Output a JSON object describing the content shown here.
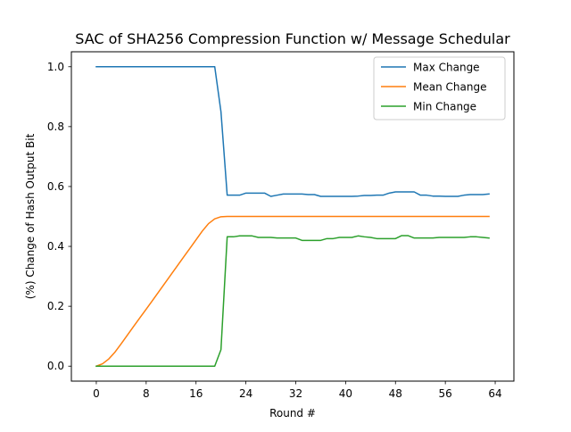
{
  "chart_data": {
    "type": "line",
    "title": "SAC of SHA256 Compression Function w/ Message Schedular",
    "xlabel": "Round #",
    "ylabel": "(%) Change of Hash Output Bit",
    "xlim": [
      -4,
      67
    ],
    "ylim": [
      -0.05,
      1.05
    ],
    "xticks": [
      0,
      8,
      16,
      24,
      32,
      40,
      48,
      56,
      64
    ],
    "xtick_labels": [
      "0",
      "8",
      "16",
      "24",
      "32",
      "40",
      "48",
      "56",
      "64"
    ],
    "yticks": [
      0.0,
      0.2,
      0.4,
      0.6,
      0.8,
      1.0
    ],
    "ytick_labels": [
      "0.0",
      "0.2",
      "0.4",
      "0.6",
      "0.8",
      "1.0"
    ],
    "grid": false,
    "legend_position": "top-right",
    "x": [
      0,
      1,
      2,
      3,
      4,
      5,
      6,
      7,
      8,
      9,
      10,
      11,
      12,
      13,
      14,
      15,
      16,
      17,
      18,
      19,
      20,
      21,
      22,
      23,
      24,
      25,
      26,
      27,
      28,
      29,
      30,
      31,
      32,
      33,
      34,
      35,
      36,
      37,
      38,
      39,
      40,
      41,
      42,
      43,
      44,
      45,
      46,
      47,
      48,
      49,
      50,
      51,
      52,
      53,
      54,
      55,
      56,
      57,
      58,
      59,
      60,
      61,
      62,
      63
    ],
    "series": [
      {
        "name": "Max Change",
        "color": "#1f77b4",
        "values": [
          1,
          1,
          1,
          1,
          1,
          1,
          1,
          1,
          1,
          1,
          1,
          1,
          1,
          1,
          1,
          1,
          1,
          1,
          1,
          1,
          0.85,
          0.571,
          0.571,
          0.571,
          0.578,
          0.578,
          0.578,
          0.578,
          0.567,
          0.571,
          0.575,
          0.575,
          0.575,
          0.575,
          0.573,
          0.573,
          0.567,
          0.567,
          0.567,
          0.567,
          0.567,
          0.567,
          0.568,
          0.57,
          0.57,
          0.571,
          0.571,
          0.578,
          0.582,
          0.582,
          0.582,
          0.582,
          0.571,
          0.571,
          0.568,
          0.568,
          0.567,
          0.567,
          0.567,
          0.571,
          0.573,
          0.573,
          0.573,
          0.575
        ]
      },
      {
        "name": "Mean Change",
        "color": "#ff7f0e",
        "values": [
          0,
          0.008,
          0.024,
          0.047,
          0.075,
          0.104,
          0.133,
          0.162,
          0.19,
          0.219,
          0.248,
          0.277,
          0.306,
          0.335,
          0.364,
          0.393,
          0.422,
          0.451,
          0.476,
          0.492,
          0.499,
          0.5,
          0.5,
          0.5,
          0.5,
          0.5,
          0.5,
          0.5,
          0.5,
          0.5,
          0.5,
          0.5,
          0.5,
          0.5,
          0.5,
          0.5,
          0.5,
          0.5,
          0.5,
          0.5,
          0.5,
          0.5,
          0.5,
          0.5,
          0.5,
          0.5,
          0.5,
          0.5,
          0.5,
          0.5,
          0.5,
          0.5,
          0.5,
          0.5,
          0.5,
          0.5,
          0.5,
          0.5,
          0.5,
          0.5,
          0.5,
          0.5,
          0.5,
          0.5
        ]
      },
      {
        "name": "Min Change",
        "color": "#2ca02c",
        "values": [
          0,
          0,
          0,
          0,
          0,
          0,
          0,
          0,
          0,
          0,
          0,
          0,
          0,
          0,
          0,
          0,
          0,
          0,
          0,
          0,
          0.055,
          0.432,
          0.432,
          0.435,
          0.435,
          0.435,
          0.43,
          0.43,
          0.43,
          0.428,
          0.428,
          0.428,
          0.428,
          0.42,
          0.42,
          0.42,
          0.42,
          0.426,
          0.426,
          0.43,
          0.43,
          0.43,
          0.435,
          0.432,
          0.43,
          0.426,
          0.426,
          0.426,
          0.426,
          0.436,
          0.436,
          0.428,
          0.428,
          0.428,
          0.428,
          0.43,
          0.43,
          0.43,
          0.43,
          0.43,
          0.432,
          0.432,
          0.43,
          0.428
        ]
      }
    ]
  }
}
